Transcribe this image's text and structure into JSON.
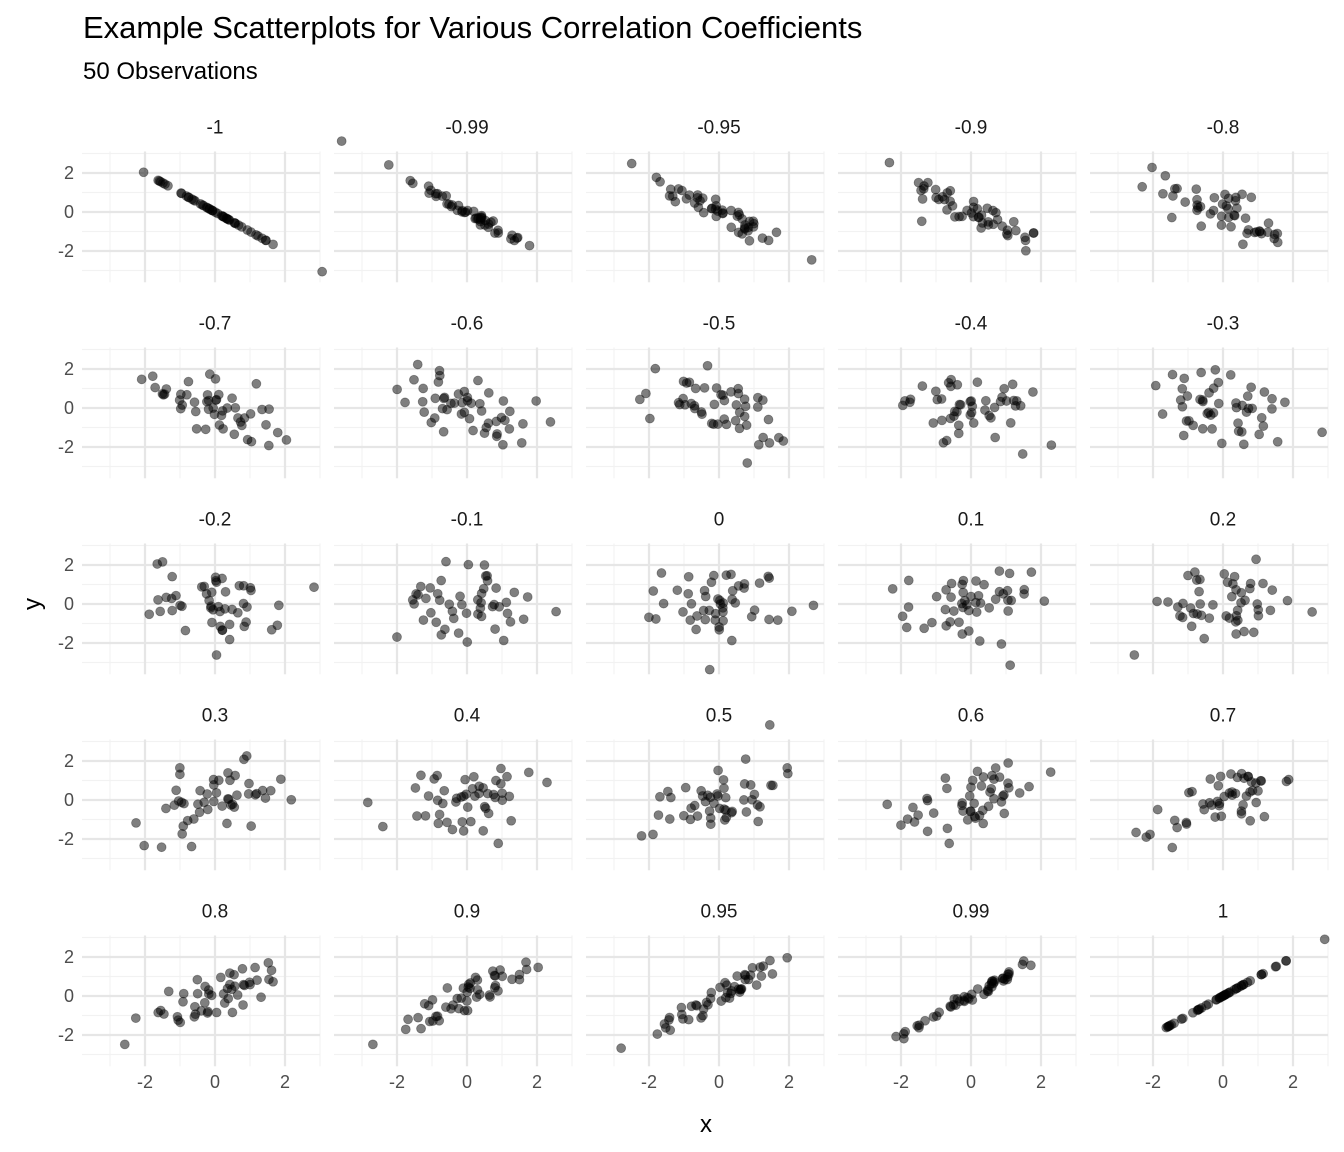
{
  "title": "Example Scatterplots for Various Correlation Coefficients",
  "subtitle": "50 Observations",
  "chart_data": {
    "type": "scatter",
    "title": "Example Scatterplots for Various Correlation Coefficients",
    "subtitle": "50 Observations",
    "xlabel": "x",
    "ylabel": "y",
    "n_observations": 50,
    "facets": [
      "-1",
      "-0.99",
      "-0.95",
      "-0.9",
      "-0.8",
      "-0.7",
      "-0.6",
      "-0.5",
      "-0.4",
      "-0.3",
      "-0.2",
      "-0.1",
      "0",
      "0.1",
      "0.2",
      "0.3",
      "0.4",
      "0.5",
      "0.6",
      "0.7",
      "0.8",
      "0.9",
      "0.95",
      "0.99",
      "1"
    ],
    "correlations": [
      -1,
      -0.99,
      -0.95,
      -0.9,
      -0.8,
      -0.7,
      -0.6,
      -0.5,
      -0.4,
      -0.3,
      -0.2,
      -0.1,
      0,
      0.1,
      0.2,
      0.3,
      0.4,
      0.5,
      0.6,
      0.7,
      0.8,
      0.9,
      0.95,
      0.99,
      1
    ],
    "xlim": [
      -3.8,
      3.0
    ],
    "ylim": [
      -3.6,
      3.1
    ],
    "xticks": [
      -2,
      0,
      2
    ],
    "yticks": [
      -2,
      0,
      2
    ],
    "xtick_labels": [
      "-2",
      "0",
      "2"
    ],
    "ytick_labels": [
      "-2",
      "0",
      "2"
    ],
    "grid": true,
    "layout": "5x5 facets",
    "point_color": "#000000",
    "point_alpha": 0.5,
    "grid_color": "#ebebeb"
  }
}
